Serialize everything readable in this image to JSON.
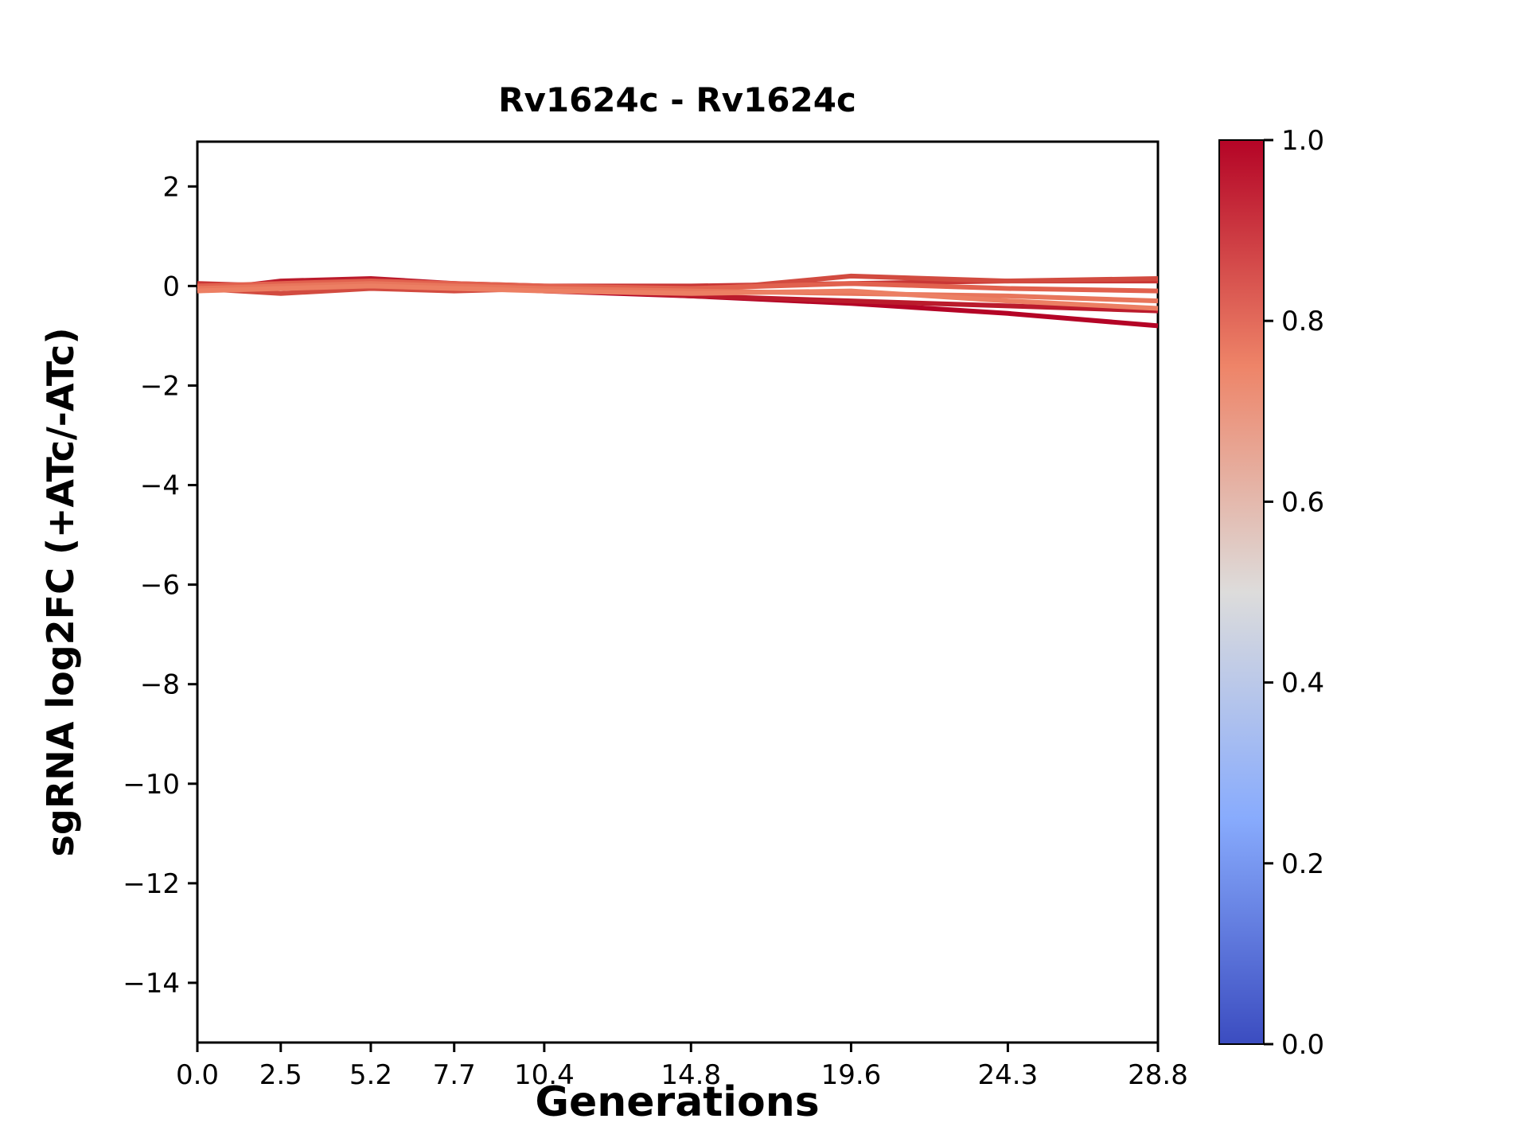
{
  "chart_data": {
    "type": "line",
    "title": "Rv1624c - Rv1624c",
    "xlabel": "Generations",
    "ylabel": "sgRNA log2FC (+ATc/-ATc)",
    "x": [
      0.0,
      2.5,
      5.2,
      7.7,
      10.4,
      14.8,
      19.6,
      24.3,
      28.8
    ],
    "xtick_labels": [
      "0.0",
      "2.5",
      "5.2",
      "7.7",
      "10.4",
      "14.8",
      "19.6",
      "24.3",
      "28.8"
    ],
    "yticks": [
      2,
      0,
      -2,
      -4,
      -6,
      -8,
      -10,
      -12,
      -14
    ],
    "ytick_labels": [
      "2",
      "0",
      "−2",
      "−4",
      "−6",
      "−8",
      "−10",
      "−12",
      "−14"
    ],
    "xlim": [
      0,
      28.8
    ],
    "ylim": [
      -15.2,
      2.9
    ],
    "grid": false,
    "legend": "none",
    "series": [
      {
        "colormap_value": 1.0,
        "color": "#b40426",
        "values": [
          0.0,
          -0.05,
          0.1,
          0.0,
          -0.1,
          -0.2,
          -0.35,
          -0.55,
          -0.8
        ]
      },
      {
        "colormap_value": 0.97,
        "color": "#bb1b2c",
        "values": [
          -0.1,
          0.1,
          0.15,
          0.05,
          -0.05,
          -0.2,
          -0.3,
          -0.4,
          -0.5
        ]
      },
      {
        "colormap_value": 0.92,
        "color": "#c93635",
        "values": [
          0.05,
          0.0,
          0.1,
          0.05,
          0.0,
          0.0,
          0.05,
          0.1,
          0.1
        ]
      },
      {
        "colormap_value": 0.85,
        "color": "#d24b40",
        "values": [
          -0.05,
          -0.15,
          -0.05,
          -0.1,
          -0.05,
          -0.1,
          0.2,
          0.1,
          0.15
        ]
      },
      {
        "colormap_value": 0.78,
        "color": "#e1614e",
        "values": [
          0.0,
          0.05,
          0.1,
          0.05,
          0.0,
          -0.05,
          0.05,
          -0.05,
          -0.1
        ]
      },
      {
        "colormap_value": 0.72,
        "color": "#e8765c",
        "values": [
          -0.05,
          0.0,
          0.05,
          0.0,
          -0.05,
          -0.1,
          -0.15,
          -0.2,
          -0.3
        ]
      },
      {
        "colormap_value": 0.68,
        "color": "#ec7f63",
        "values": [
          -0.1,
          -0.05,
          0.0,
          -0.05,
          -0.1,
          -0.15,
          -0.1,
          -0.3,
          -0.45
        ]
      }
    ],
    "colorbar": {
      "min": 0.0,
      "max": 1.0,
      "ticks": [
        {
          "value": 1.0,
          "label": "1.0"
        },
        {
          "value": 0.8,
          "label": "0.8"
        },
        {
          "value": 0.6,
          "label": "0.6"
        },
        {
          "value": 0.4,
          "label": "0.4"
        },
        {
          "value": 0.2,
          "label": "0.2"
        },
        {
          "value": 0.0,
          "label": "0.0"
        }
      ],
      "colormap": "coolwarm",
      "gradient": [
        {
          "offset": 0.0,
          "color": "#3b4cc0"
        },
        {
          "offset": 0.25,
          "color": "#88abfd"
        },
        {
          "offset": 0.5,
          "color": "#dddcdb"
        },
        {
          "offset": 0.75,
          "color": "#ee8468"
        },
        {
          "offset": 1.0,
          "color": "#b40426"
        }
      ]
    }
  }
}
